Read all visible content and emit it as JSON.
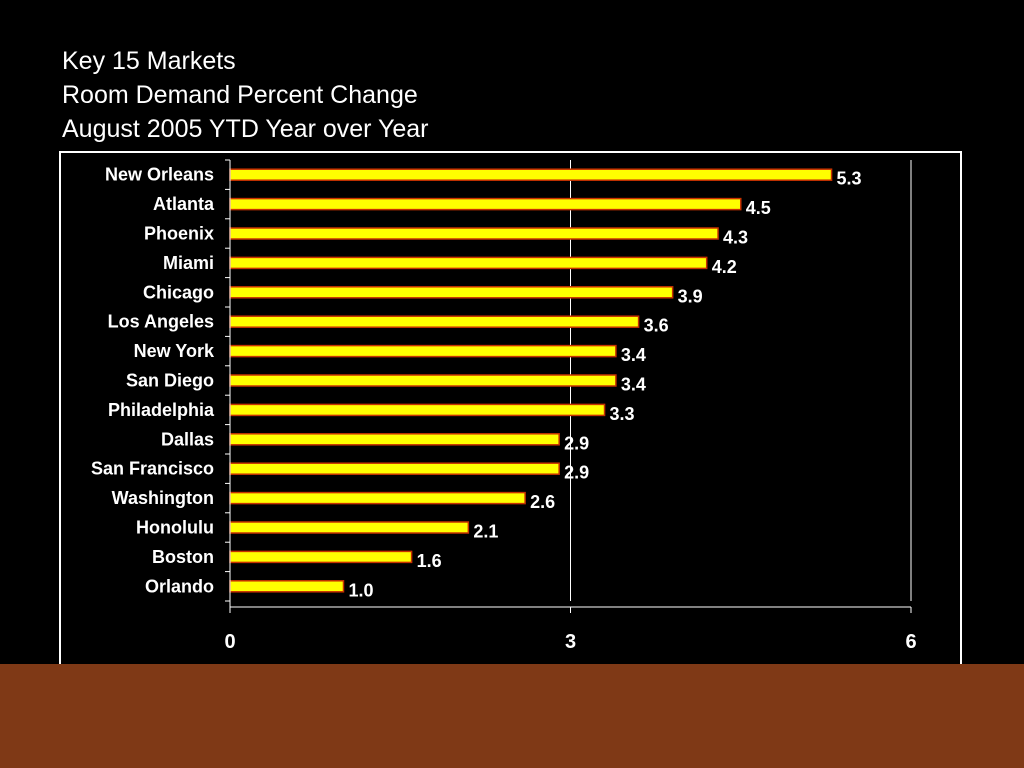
{
  "slide": {
    "title_lines": [
      "Key 15 Markets",
      "Room Demand Percent Change",
      "August 2005 YTD Year over Year"
    ],
    "background_color": "#000000",
    "footer_color": "#7f3916"
  },
  "chart_data": {
    "type": "bar",
    "orientation": "horizontal",
    "categories": [
      "New Orleans",
      "Atlanta",
      "Phoenix",
      "Miami",
      "Chicago",
      "Los Angeles",
      "New York",
      "San Diego",
      "Philadelphia",
      "Dallas",
      "San Francisco",
      "Washington",
      "Honolulu",
      "Boston",
      "Orlando"
    ],
    "values": [
      5.3,
      4.5,
      4.3,
      4.2,
      3.9,
      3.6,
      3.4,
      3.4,
      3.3,
      2.9,
      2.9,
      2.6,
      2.1,
      1.6,
      1.0
    ],
    "value_labels": [
      "5.3",
      "4.5",
      "4.3",
      "4.2",
      "3.9",
      "3.6",
      "3.4",
      "3.4",
      "3.3",
      "2.9",
      "2.9",
      "2.6",
      "2.1",
      "1.6",
      "1.0"
    ],
    "xlim": [
      0,
      6
    ],
    "x_ticks": [
      0,
      3,
      6
    ],
    "x_tick_labels": [
      "0",
      "3",
      "6"
    ],
    "grid": "vertical",
    "legend": "none",
    "bar_color": "#ffff00",
    "bar_edge_color": "#c83200",
    "plot_background": "#000000",
    "text_color": "#ffffff"
  }
}
